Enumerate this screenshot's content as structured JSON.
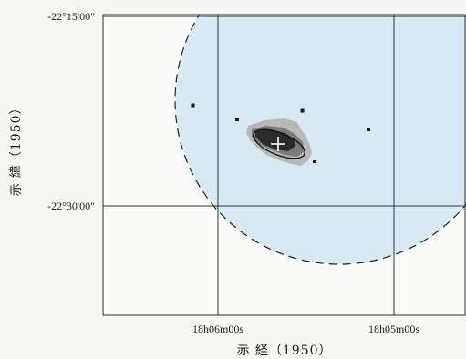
{
  "chart_data": {
    "type": "map",
    "xlabel": "赤 経（1950）",
    "ylabel": "赤 緯（1950）",
    "x_ticks": [
      "18h06m00s",
      "18h05m00s"
    ],
    "y_ticks": [
      "-22°15'00\"",
      "-22°30'00\""
    ],
    "grid": true,
    "source_marker": "+",
    "point_sources": 5
  },
  "colors": {
    "field": "#d7e9f3",
    "background": "#f7f7f5",
    "grid": "#333333",
    "boundary": "#222222",
    "emission_dark": "#2b2b2b",
    "emission_mid": "#7a7a7a",
    "emission_light": "#b8b8b8"
  }
}
